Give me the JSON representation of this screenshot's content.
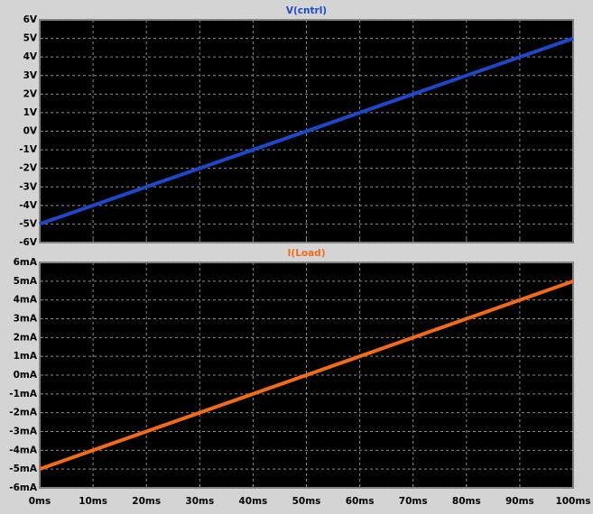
{
  "chart_data": [
    {
      "type": "line",
      "x": [
        0,
        100
      ],
      "series": [
        {
          "name": "V(cntrl)",
          "color": "#1f48c8",
          "values": [
            -5,
            5
          ]
        }
      ],
      "xlim": [
        0,
        100
      ],
      "xticks": [
        0,
        10,
        20,
        30,
        40,
        50,
        60,
        70,
        80,
        90,
        100
      ],
      "ylim": [
        -6,
        6
      ],
      "yticks": [
        {
          "value": 6,
          "label": "6V"
        },
        {
          "value": 5,
          "label": "5V"
        },
        {
          "value": 4,
          "label": "4V"
        },
        {
          "value": 3,
          "label": "3V"
        },
        {
          "value": 2,
          "label": "2V"
        },
        {
          "value": 1,
          "label": "1V"
        },
        {
          "value": 0,
          "label": "0V"
        },
        {
          "value": -1,
          "label": "-1V"
        },
        {
          "value": -2,
          "label": "-2V"
        },
        {
          "value": -3,
          "label": "-3V"
        },
        {
          "value": -4,
          "label": "-4V"
        },
        {
          "value": -5,
          "label": "-5V"
        },
        {
          "value": -6,
          "label": "-6V"
        }
      ],
      "grid": true
    },
    {
      "type": "line",
      "x": [
        0,
        100
      ],
      "series": [
        {
          "name": "I(Load)",
          "color": "#f26b1d",
          "values": [
            -5,
            5
          ]
        }
      ],
      "xlim": [
        0,
        100
      ],
      "xticks": [
        {
          "value": 0,
          "label": "0ms"
        },
        {
          "value": 10,
          "label": "10ms"
        },
        {
          "value": 20,
          "label": "20ms"
        },
        {
          "value": 30,
          "label": "30ms"
        },
        {
          "value": 40,
          "label": "40ms"
        },
        {
          "value": 50,
          "label": "50ms"
        },
        {
          "value": 60,
          "label": "60ms"
        },
        {
          "value": 70,
          "label": "70ms"
        },
        {
          "value": 80,
          "label": "80ms"
        },
        {
          "value": 90,
          "label": "90ms"
        },
        {
          "value": 100,
          "label": "100ms"
        }
      ],
      "ylim": [
        -6,
        6
      ],
      "yticks": [
        {
          "value": 6,
          "label": "6mA"
        },
        {
          "value": 5,
          "label": "5mA"
        },
        {
          "value": 4,
          "label": "4mA"
        },
        {
          "value": 3,
          "label": "3mA"
        },
        {
          "value": 2,
          "label": "2mA"
        },
        {
          "value": 1,
          "label": "1mA"
        },
        {
          "value": 0,
          "label": "0mA"
        },
        {
          "value": -1,
          "label": "-1mA"
        },
        {
          "value": -2,
          "label": "-2mA"
        },
        {
          "value": -3,
          "label": "-3mA"
        },
        {
          "value": -4,
          "label": "-4mA"
        },
        {
          "value": -5,
          "label": "-5mA"
        },
        {
          "value": -6,
          "label": "-6mA"
        }
      ],
      "grid": true
    }
  ]
}
